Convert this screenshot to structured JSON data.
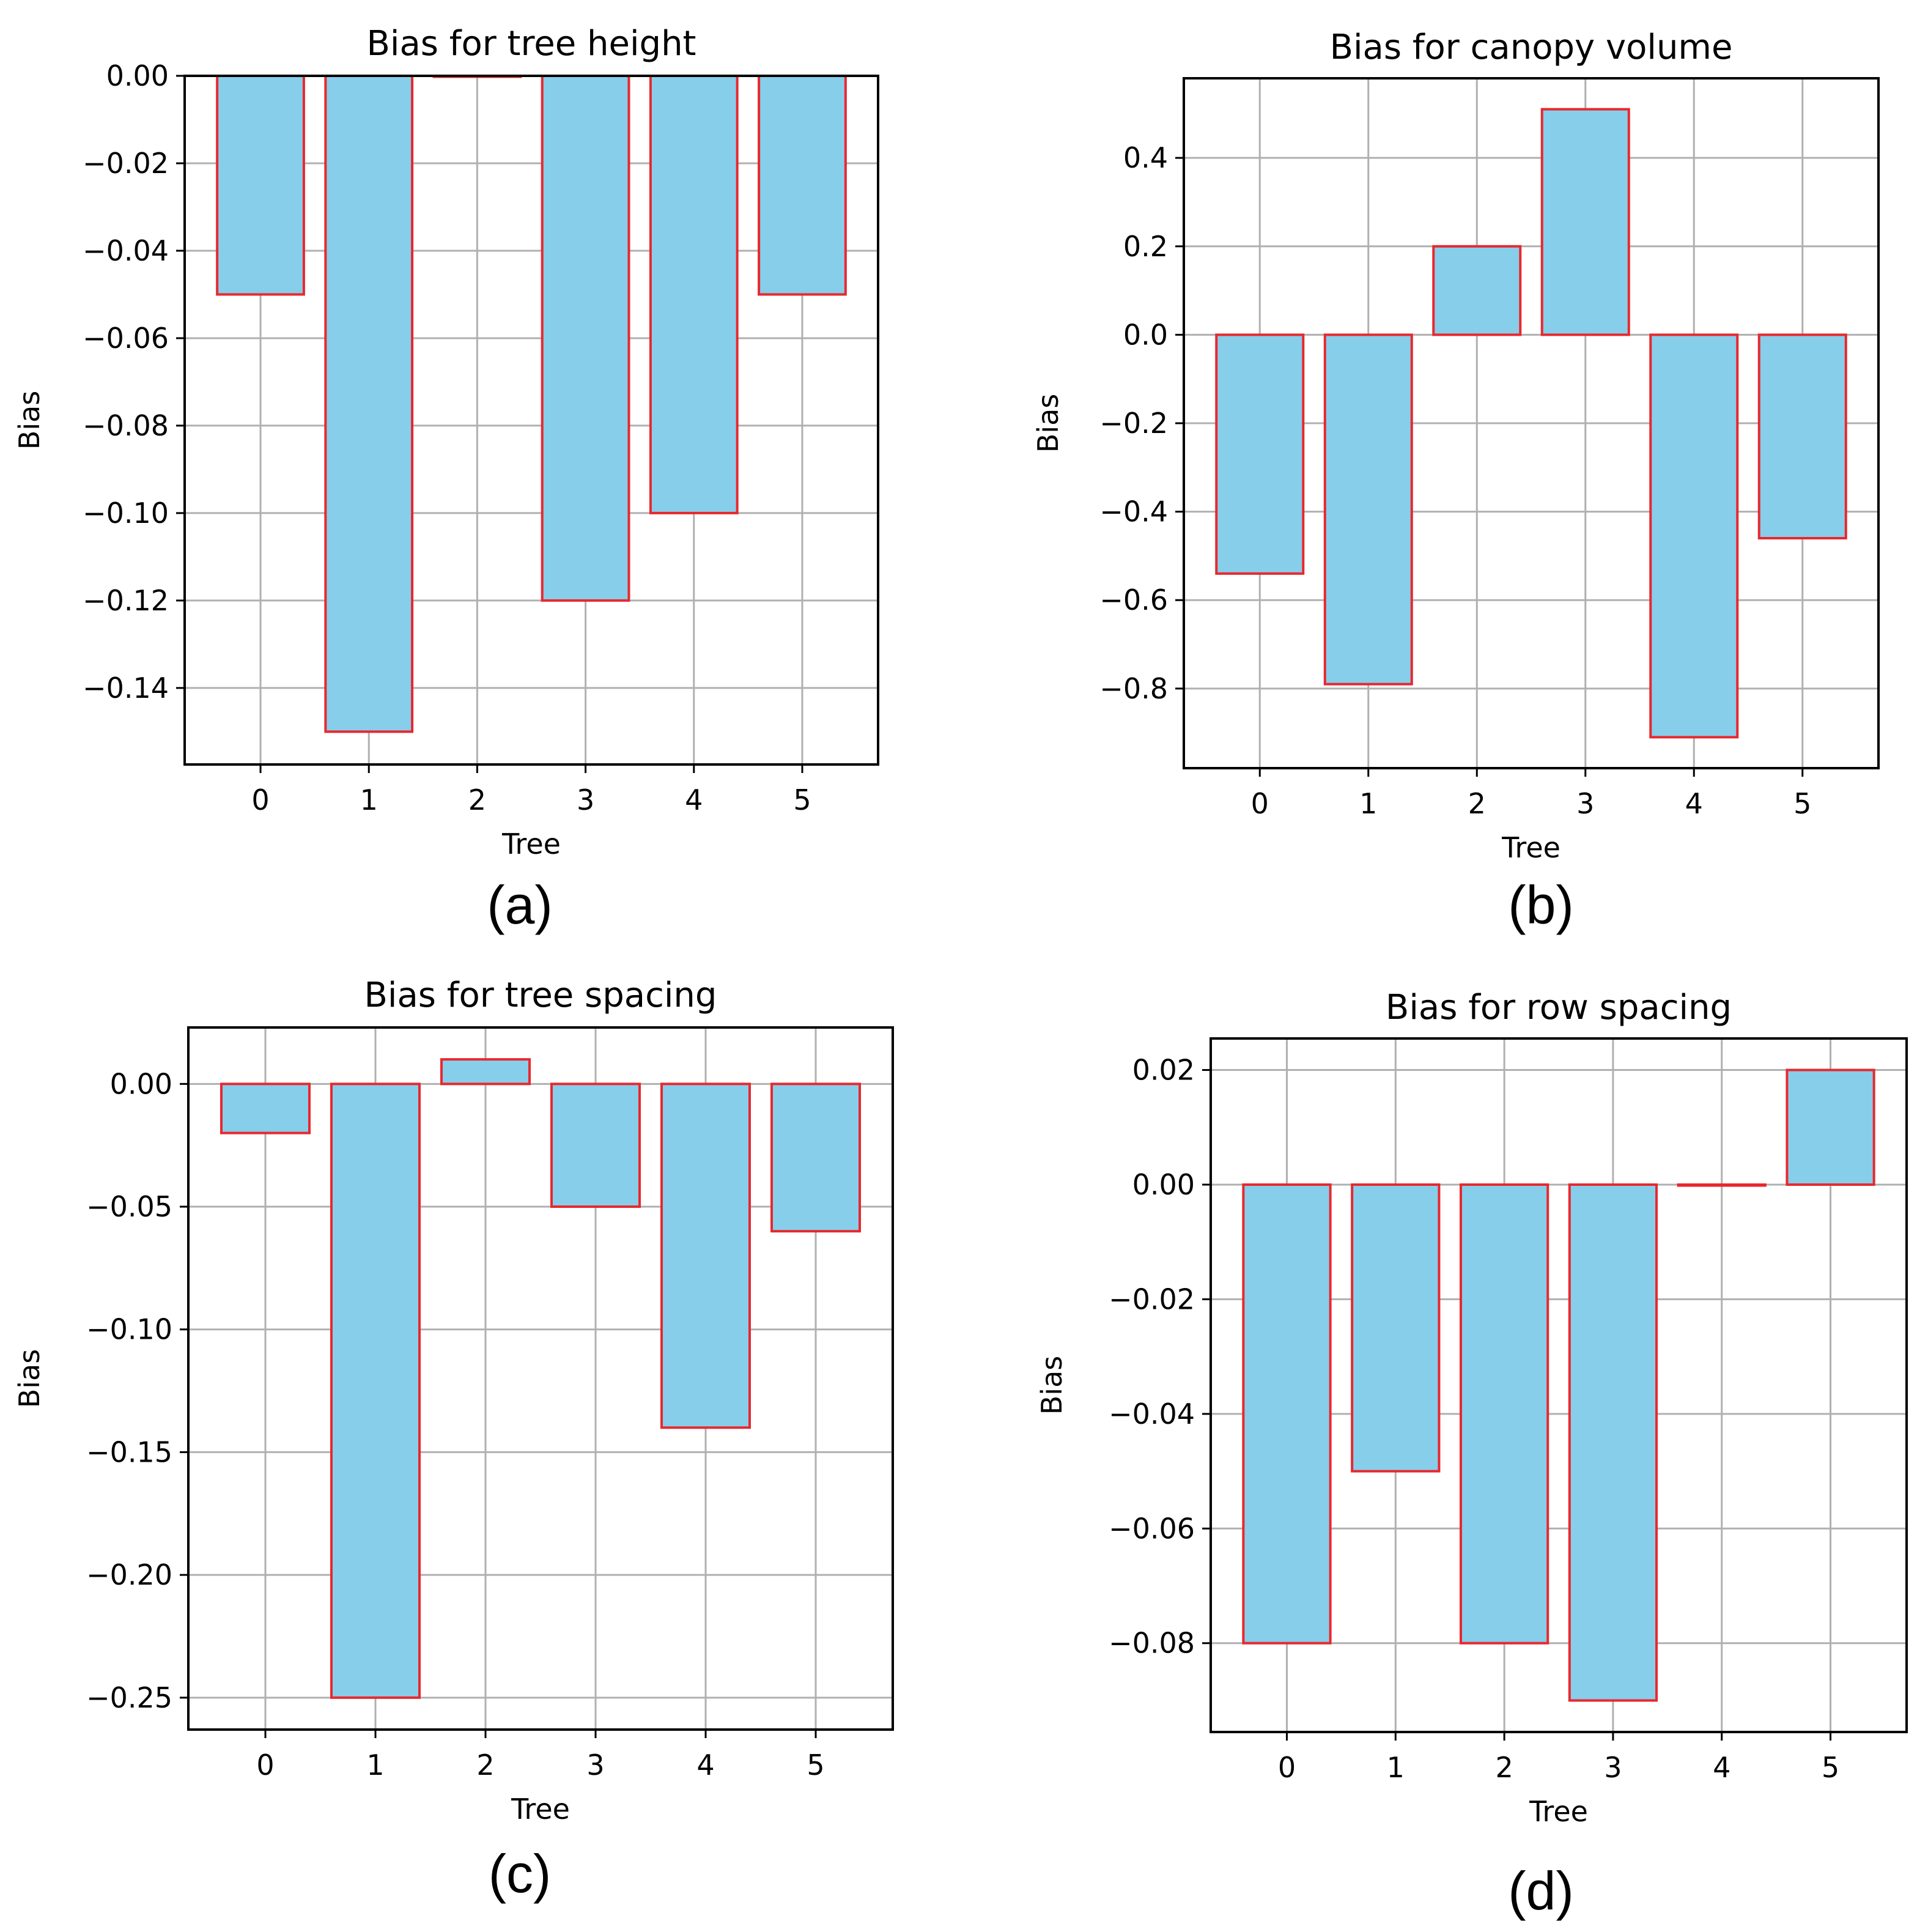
{
  "colors": {
    "bar_fill": "#87CEEB",
    "bar_edge": "#E8282E"
  },
  "chart_data": [
    {
      "type": "bar",
      "panel_label": "(a)",
      "title": "Bias for tree height",
      "xlabel": "Tree",
      "ylabel": "Bias",
      "categories": [
        "0",
        "1",
        "2",
        "3",
        "4",
        "5"
      ],
      "values": [
        -0.05,
        -0.15,
        0.0,
        -0.12,
        -0.1,
        -0.05
      ],
      "ylim": [
        -0.1575,
        0.0
      ],
      "yticks": [
        0.0,
        -0.02,
        -0.04,
        -0.06,
        -0.08,
        -0.1,
        -0.12,
        -0.14
      ],
      "ytick_labels": [
        "0.00",
        "−0.02",
        "−0.04",
        "−0.06",
        "−0.08",
        "−0.10",
        "−0.12",
        "−0.14"
      ],
      "grid": true
    },
    {
      "type": "bar",
      "panel_label": "(b)",
      "title": "Bias for canopy volume",
      "xlabel": "Tree",
      "ylabel": "Bias",
      "categories": [
        "0",
        "1",
        "2",
        "3",
        "4",
        "5"
      ],
      "values": [
        -0.54,
        -0.79,
        0.2,
        0.51,
        -0.91,
        -0.46
      ],
      "ylim": [
        -0.98,
        0.58
      ],
      "yticks": [
        0.4,
        0.2,
        0.0,
        -0.2,
        -0.4,
        -0.6,
        -0.8
      ],
      "ytick_labels": [
        "0.4",
        "0.2",
        "0.0",
        "−0.2",
        "−0.4",
        "−0.6",
        "−0.8"
      ],
      "grid": true
    },
    {
      "type": "bar",
      "panel_label": "(c)",
      "title": "Bias for tree spacing",
      "xlabel": "Tree",
      "ylabel": "Bias",
      "categories": [
        "0",
        "1",
        "2",
        "3",
        "4",
        "5"
      ],
      "values": [
        -0.02,
        -0.25,
        0.01,
        -0.05,
        -0.14,
        -0.06
      ],
      "ylim": [
        -0.263,
        0.023
      ],
      "yticks": [
        0.0,
        -0.05,
        -0.1,
        -0.15,
        -0.2,
        -0.25
      ],
      "ytick_labels": [
        "0.00",
        "−0.05",
        "−0.10",
        "−0.15",
        "−0.20",
        "−0.25"
      ],
      "grid": true
    },
    {
      "type": "bar",
      "panel_label": "(d)",
      "title": "Bias for row spacing",
      "xlabel": "Tree",
      "ylabel": "Bias",
      "categories": [
        "0",
        "1",
        "2",
        "3",
        "4",
        "5"
      ],
      "values": [
        -0.08,
        -0.05,
        -0.08,
        -0.09,
        0.0,
        0.02
      ],
      "ylim": [
        -0.0955,
        0.0255
      ],
      "yticks": [
        0.02,
        0.0,
        -0.02,
        -0.04,
        -0.06,
        -0.08
      ],
      "ytick_labels": [
        "0.02",
        "0.00",
        "−0.02",
        "−0.04",
        "−0.06",
        "−0.08"
      ],
      "grid": true
    }
  ]
}
